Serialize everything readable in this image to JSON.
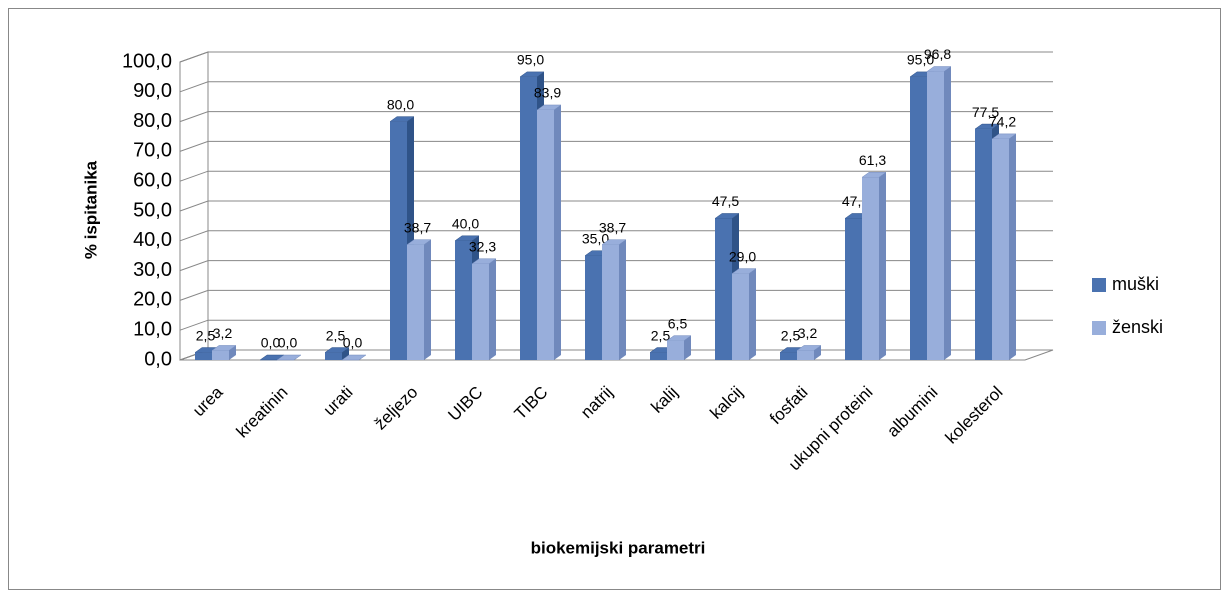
{
  "chart_data": {
    "type": "bar3d",
    "x_label": "biokemijski parametri",
    "y_label": "% ispitanika",
    "categories": [
      "urea",
      "kreatinin",
      "urati",
      "željezo",
      "UIBC",
      "TIBC",
      "natrij",
      "kalij",
      "kalcij",
      "fosfati",
      "ukupni proteini",
      "albumini",
      "kolesterol"
    ],
    "series": [
      {
        "name": "muški",
        "color": "#4a72b0",
        "side": "#2f5388",
        "values": [
          2.5,
          0.0,
          2.5,
          80.0,
          40.0,
          95.0,
          35.0,
          2.5,
          47.5,
          2.5,
          47.5,
          95.0,
          77.5
        ],
        "value_labels": [
          "2,5",
          "0,0",
          "2,5",
          "80,0",
          "40,0",
          "95,0",
          "35,0",
          "2,5",
          "47,5",
          "2,5",
          "47,5",
          "95,0",
          "77,5"
        ]
      },
      {
        "name": "ženski",
        "color": "#98aedb",
        "side": "#7089bc",
        "values": [
          3.2,
          0.0,
          0.0,
          38.7,
          32.3,
          83.9,
          38.7,
          6.5,
          29.0,
          3.2,
          61.3,
          96.8,
          74.2
        ],
        "value_labels": [
          "3,2",
          "0,0",
          "0,0",
          "38,7",
          "32,3",
          "83,9",
          "38,7",
          "6,5",
          "29,0",
          "3,2",
          "61,3",
          "96,8",
          "74,2"
        ]
      }
    ],
    "ylim": [
      0,
      100
    ],
    "yticks": [
      {
        "value": 0,
        "label": "0,0"
      },
      {
        "value": 10,
        "label": "10,0"
      },
      {
        "value": 20,
        "label": "20,0"
      },
      {
        "value": 30,
        "label": "30,0"
      },
      {
        "value": 40,
        "label": "40,0"
      },
      {
        "value": 50,
        "label": "50,0"
      },
      {
        "value": 60,
        "label": "60,0"
      },
      {
        "value": 70,
        "label": "70,0"
      },
      {
        "value": 80,
        "label": "80,0"
      },
      {
        "value": 90,
        "label": "90,0"
      },
      {
        "value": 100,
        "label": "100,0"
      }
    ],
    "grid": true,
    "legend": "right"
  }
}
